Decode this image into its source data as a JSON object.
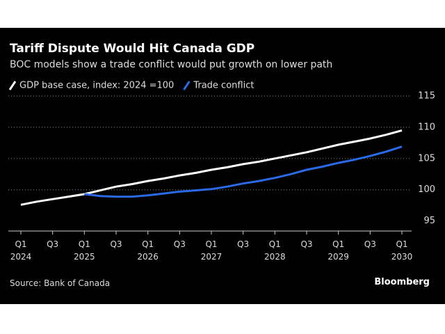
{
  "chart_data": {
    "type": "line",
    "title": "Tariff Dispute Would Hit Canada GDP",
    "subtitle": "BOC models show a trade conflict would put growth on lower path",
    "source": "Source: Bank of Canada",
    "brand": "Bloomberg",
    "categories": [
      "Q1\n2024",
      null,
      "Q3",
      null,
      "Q1\n2025",
      null,
      "Q3",
      null,
      "Q1\n2026",
      null,
      "Q3",
      null,
      "Q1\n2027",
      null,
      "Q3",
      null,
      "Q1\n2028",
      null,
      "Q3",
      null,
      "Q1\n2029",
      null,
      "Q3",
      null,
      "Q1\n2030"
    ],
    "series": [
      {
        "name": "GDP base case, index: 2024 =100",
        "color": "#ffffff",
        "values": [
          97.6,
          98.1,
          98.5,
          98.9,
          99.3,
          99.9,
          100.5,
          100.9,
          101.4,
          101.8,
          102.3,
          102.7,
          103.2,
          103.6,
          104.1,
          104.5,
          105.0,
          105.5,
          106.0,
          106.6,
          107.2,
          107.7,
          108.2,
          108.8,
          109.5
        ]
      },
      {
        "name": "Trade conflict",
        "color": "#2a6ae6",
        "values": [
          null,
          null,
          null,
          null,
          99.3,
          99.0,
          98.9,
          98.9,
          99.1,
          99.4,
          99.7,
          99.9,
          100.1,
          100.5,
          101.0,
          101.4,
          101.9,
          102.5,
          103.2,
          103.7,
          104.3,
          104.8,
          105.4,
          106.1,
          106.9
        ]
      }
    ],
    "ylim": [
      93.4,
      116
    ],
    "yticks": [
      95,
      100,
      105,
      110,
      115
    ],
    "grid": true
  }
}
